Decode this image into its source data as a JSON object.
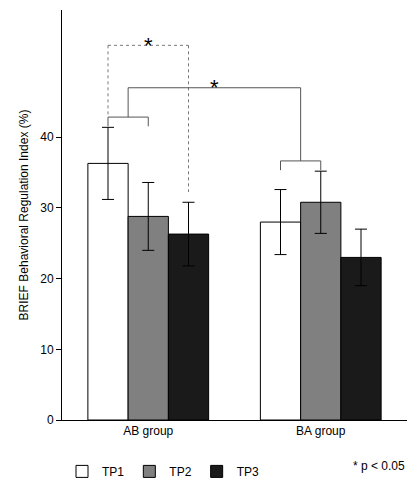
{
  "chart_data": {
    "type": "bar",
    "categories": [
      "AB group",
      "BA group"
    ],
    "series": [
      {
        "name": "TP1",
        "color": "#ffffff",
        "values": [
          36.3,
          28.0
        ],
        "errors": [
          5.1,
          4.6
        ]
      },
      {
        "name": "TP2",
        "color": "#808080",
        "values": [
          28.8,
          30.8
        ],
        "errors": [
          4.8,
          4.4
        ]
      },
      {
        "name": "TP3",
        "color": "#1a1a1a",
        "values": [
          26.3,
          23.0
        ],
        "errors": [
          4.5,
          4.0
        ]
      }
    ],
    "ylabel": "BRIEF Behavioral Regulation Index (%)",
    "ylim": [
      0,
      58
    ],
    "yticks": [
      0,
      10,
      20,
      30,
      40
    ],
    "grid": false,
    "legend": "bottom",
    "note": "* p < 0.05",
    "comparisons": [
      {
        "text": "*",
        "line_style": "dotted",
        "y": 53,
        "left": {
          "category": "AB group",
          "series": [
            "TP1"
          ]
        },
        "right": {
          "category": "AB group",
          "series": [
            "TP3"
          ]
        }
      },
      {
        "text": "*",
        "line_style": "solid",
        "y": 47,
        "left": {
          "category": "AB group",
          "series": [
            "TP1",
            "TP2"
          ]
        },
        "right": {
          "category": "BA group",
          "series": [
            "TP1",
            "TP2"
          ]
        }
      }
    ]
  }
}
